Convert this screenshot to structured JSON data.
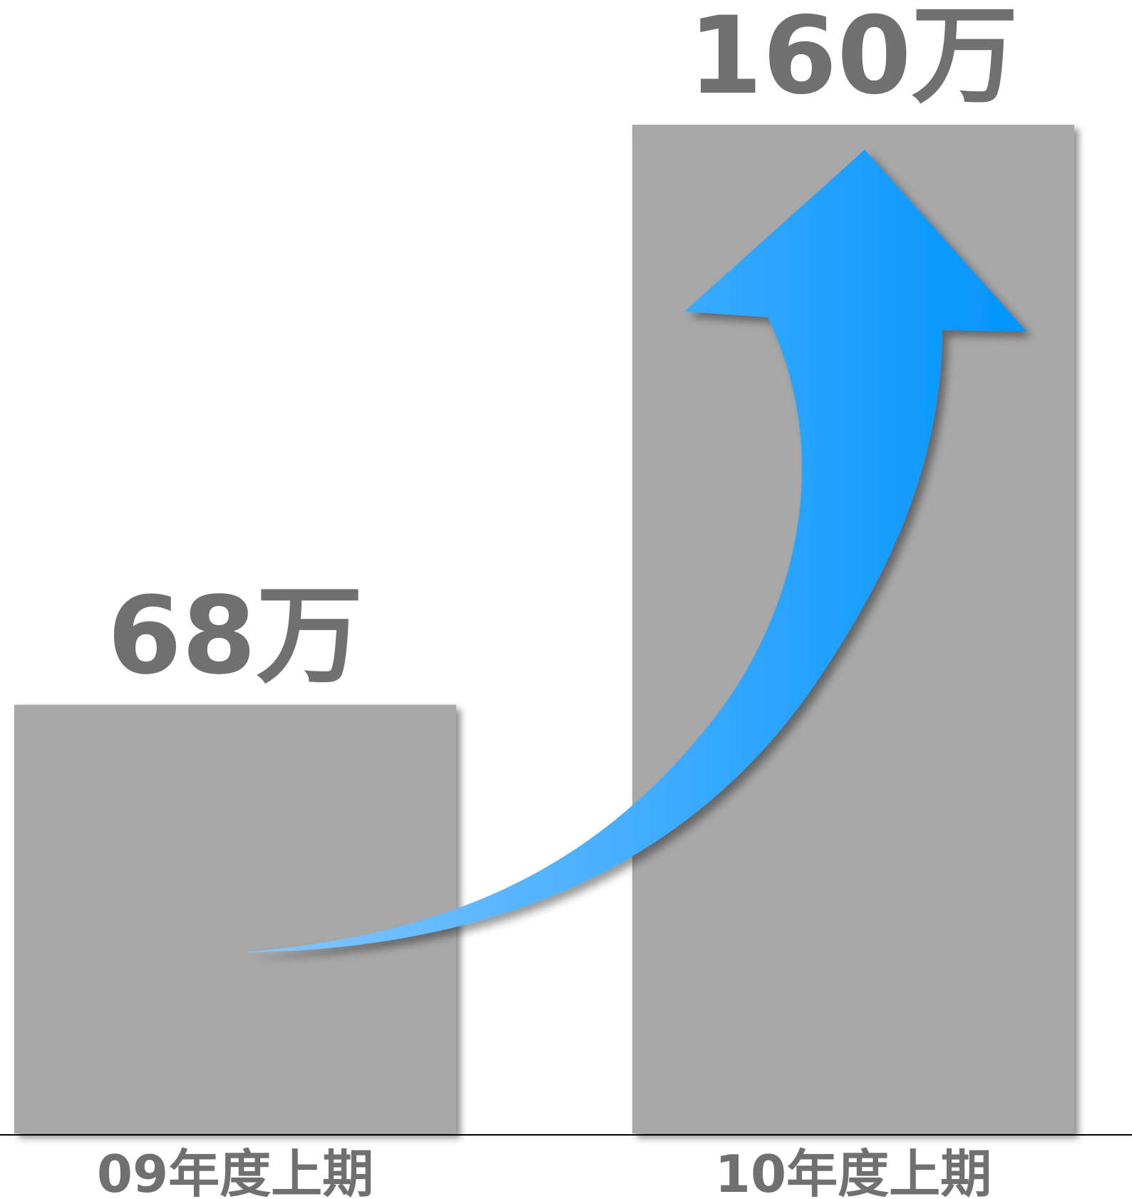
{
  "chart_data": {
    "type": "bar",
    "categories": [
      "09年度上期",
      "10年度上期"
    ],
    "values": [
      68,
      160
    ],
    "data_labels": [
      "68万",
      "160万"
    ],
    "title": "",
    "xlabel": "",
    "ylabel": "",
    "ylim": [
      0,
      160
    ],
    "grid": false,
    "legend": "none",
    "annotation": "upward-trend-arrow",
    "colors": {
      "bar": "#a8a8a8",
      "label": "#707070",
      "axis": "#000000",
      "arrow_start": "#86c7ff",
      "arrow_end": "#0094ff"
    }
  }
}
